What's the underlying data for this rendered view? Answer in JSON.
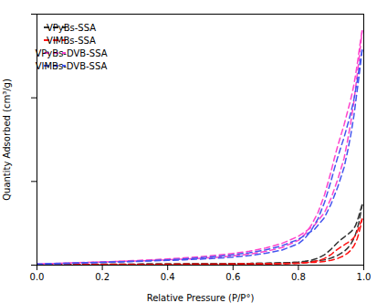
{
  "chart_data": {
    "type": "line",
    "xlabel": "Relative Pressure (P/P°)",
    "ylabel": "Quantity Adsorbed (cm³/g)",
    "xlim": [
      0.0,
      1.0
    ],
    "xticks": [
      {
        "value": 0.0,
        "label": "0.0"
      },
      0.2,
      0.4,
      0.6,
      0.8,
      {
        "value": 1.0,
        "label": "1.0"
      }
    ],
    "ylim": [
      0,
      1500
    ],
    "yticks": [
      0,
      500,
      1000,
      1500
    ],
    "tick_labels": "x",
    "legend": "upper left",
    "series": [
      {
        "name": "VPyBs-SSA",
        "color": "#333333",
        "line_style": "dashed",
        "adsorption": {
          "x": [
            0.0,
            0.05,
            0.1,
            0.15,
            0.2,
            0.25,
            0.3,
            0.35,
            0.4,
            0.45,
            0.5,
            0.55,
            0.6,
            0.65,
            0.7,
            0.75,
            0.8,
            0.85,
            0.88,
            0.9,
            0.92,
            0.94,
            0.95,
            0.96,
            0.97,
            0.975,
            0.98,
            0.985,
            0.99,
            0.995
          ],
          "values": [
            3.0,
            3.5,
            4.0,
            4.5,
            5.0,
            5.5,
            6.0,
            6.5,
            7.0,
            7.5,
            8.0,
            8.5,
            9.0,
            10.0,
            11.5,
            13.5,
            17.0,
            24.0,
            32.0,
            42.0,
            58.0,
            82.0,
            100.0,
            125.0,
            160.0,
            185.0,
            215.0,
            255.0,
            305.0,
            360.0
          ]
        },
        "desorption": {
          "x": [
            0.995,
            0.99,
            0.985,
            0.98,
            0.975,
            0.97,
            0.965,
            0.96,
            0.955,
            0.95,
            0.945,
            0.94,
            0.93,
            0.92,
            0.91,
            0.9,
            0.88,
            0.86,
            0.84,
            0.82,
            0.8,
            0.75,
            0.7,
            0.65,
            0.6,
            0.55,
            0.5,
            0.45,
            0.4,
            0.35,
            0.3,
            0.25,
            0.2,
            0.15,
            0.1,
            0.05,
            0.0
          ],
          "values": [
            360.0,
            330.0,
            295.0,
            262.0,
            238.0,
            220.0,
            208.0,
            198.0,
            190.0,
            183.0,
            175.0,
            167.0,
            152.0,
            135.0,
            115.0,
            95.0,
            62.0,
            42.0,
            30.0,
            23.0,
            18.0,
            13.5,
            11.5,
            10.0,
            9.0,
            8.5,
            8.0,
            7.5,
            7.0,
            6.5,
            6.0,
            5.5,
            5.0,
            4.5,
            4.0,
            3.5,
            3.0
          ]
        }
      },
      {
        "name": "VIMBs-SSA",
        "color": "#ff1111",
        "line_style": "dashed",
        "adsorption": {
          "x": [
            0.0,
            0.05,
            0.1,
            0.15,
            0.2,
            0.25,
            0.3,
            0.35,
            0.4,
            0.45,
            0.5,
            0.55,
            0.6,
            0.65,
            0.7,
            0.75,
            0.8,
            0.85,
            0.88,
            0.9,
            0.92,
            0.94,
            0.95,
            0.96,
            0.97,
            0.975,
            0.98,
            0.985,
            0.99,
            0.995
          ],
          "values": [
            1.5,
            2.0,
            2.5,
            3.0,
            3.5,
            4.0,
            4.2,
            4.5,
            5.0,
            5.3,
            5.7,
            6.0,
            6.5,
            7.0,
            8.0,
            9.5,
            12.0,
            17.0,
            22.0,
            29.0,
            40.0,
            57.0,
            70.0,
            88.0,
            115.0,
            135.0,
            158.0,
            190.0,
            230.0,
            275.0
          ]
        },
        "desorption": {
          "x": [
            0.995,
            0.99,
            0.985,
            0.98,
            0.975,
            0.97,
            0.965,
            0.96,
            0.955,
            0.95,
            0.945,
            0.94,
            0.93,
            0.92,
            0.91,
            0.9,
            0.88,
            0.86,
            0.84,
            0.82,
            0.8,
            0.75,
            0.7,
            0.65,
            0.6,
            0.55,
            0.5,
            0.45,
            0.4,
            0.35,
            0.3,
            0.25,
            0.2,
            0.15,
            0.1,
            0.05,
            0.0
          ],
          "values": [
            275.0,
            252.0,
            225.0,
            200.0,
            180.0,
            165.0,
            155.0,
            147.0,
            140.0,
            133.0,
            127.0,
            120.0,
            108.0,
            95.0,
            80.0,
            63.0,
            40.0,
            26.0,
            18.0,
            13.5,
            10.5,
            8.0,
            7.0,
            6.5,
            6.0,
            5.7,
            5.3,
            5.0,
            4.5,
            4.2,
            4.0,
            3.5,
            3.0,
            2.5,
            2.0,
            1.8,
            1.5
          ]
        }
      },
      {
        "name": "VPyBs-DVB-SSA",
        "color": "#ff44cc",
        "line_style": "dashed",
        "adsorption": {
          "x": [
            0.0,
            0.05,
            0.1,
            0.15,
            0.2,
            0.25,
            0.3,
            0.35,
            0.4,
            0.45,
            0.5,
            0.55,
            0.6,
            0.65,
            0.7,
            0.75,
            0.8,
            0.85,
            0.88,
            0.9,
            0.92,
            0.94,
            0.95,
            0.96,
            0.97,
            0.975,
            0.98,
            0.985,
            0.99,
            0.995
          ],
          "values": [
            6.0,
            9.0,
            12.0,
            15.5,
            19.0,
            23.0,
            27.0,
            32.0,
            37.0,
            43.0,
            50.0,
            59.0,
            70.0,
            83.0,
            102.0,
            130.0,
            172.0,
            240.0,
            315.0,
            400.0,
            510.0,
            640.0,
            740.0,
            850.0,
            980.0,
            1060.0,
            1140.0,
            1220.0,
            1310.0,
            1400.0
          ]
        },
        "desorption": {
          "x": [
            0.995,
            0.99,
            0.985,
            0.98,
            0.975,
            0.97,
            0.965,
            0.96,
            0.955,
            0.95,
            0.945,
            0.94,
            0.93,
            0.92,
            0.91,
            0.9,
            0.88,
            0.86,
            0.84,
            0.82,
            0.8,
            0.75,
            0.7,
            0.65,
            0.6,
            0.55,
            0.5,
            0.45,
            0.4,
            0.35,
            0.3,
            0.25,
            0.2,
            0.15,
            0.1,
            0.05,
            0.0
          ],
          "values": [
            1400.0,
            1340.0,
            1270.0,
            1200.0,
            1138.0,
            1080.0,
            1032.0,
            990.0,
            952.0,
            915.0,
            878.0,
            840.0,
            776.0,
            710.0,
            638.0,
            560.0,
            420.0,
            315.0,
            240.0,
            185.0,
            148.0,
            105.0,
            82.0,
            66.0,
            55.0,
            47.0,
            41.0,
            36.0,
            32.0,
            28.0,
            25.0,
            22.0,
            19.0,
            16.0,
            13.0,
            10.0,
            7.0
          ]
        }
      },
      {
        "name": "VIMBs-DVB-SSA",
        "color": "#4455ee",
        "line_style": "dashed",
        "adsorption": {
          "x": [
            0.0,
            0.05,
            0.1,
            0.15,
            0.2,
            0.25,
            0.3,
            0.35,
            0.4,
            0.45,
            0.5,
            0.55,
            0.6,
            0.65,
            0.7,
            0.75,
            0.8,
            0.85,
            0.88,
            0.9,
            0.92,
            0.94,
            0.95,
            0.96,
            0.97,
            0.975,
            0.98,
            0.985,
            0.99,
            0.995
          ],
          "values": [
            5.0,
            7.5,
            10.0,
            13.0,
            16.0,
            19.5,
            23.0,
            27.5,
            32.0,
            37.5,
            44.0,
            52.0,
            62.0,
            74.0,
            91.0,
            116.0,
            154.0,
            215.0,
            285.0,
            365.0,
            465.0,
            585.0,
            675.0,
            775.0,
            895.0,
            970.0,
            1045.0,
            1120.0,
            1200.0,
            1285.0
          ]
        },
        "desorption": {
          "x": [
            0.995,
            0.99,
            0.985,
            0.98,
            0.975,
            0.97,
            0.965,
            0.96,
            0.955,
            0.95,
            0.945,
            0.94,
            0.93,
            0.92,
            0.91,
            0.9,
            0.88,
            0.86,
            0.84,
            0.82,
            0.8,
            0.75,
            0.7,
            0.65,
            0.6,
            0.55,
            0.5,
            0.45,
            0.4,
            0.35,
            0.3,
            0.25,
            0.2,
            0.15,
            0.1,
            0.05,
            0.0
          ],
          "values": [
            1285.0,
            1230.0,
            1165.0,
            1100.0,
            1045.0,
            992.0,
            948.0,
            908.0,
            870.0,
            835.0,
            800.0,
            765.0,
            705.0,
            643.0,
            576.0,
            504.0,
            375.0,
            278.0,
            210.0,
            160.0,
            128.0,
            90.0,
            71.0,
            57.0,
            48.0,
            41.0,
            36.0,
            32.0,
            28.0,
            25.0,
            22.0,
            19.5,
            17.0,
            14.5,
            12.0,
            9.5,
            6.5
          ]
        }
      }
    ]
  }
}
